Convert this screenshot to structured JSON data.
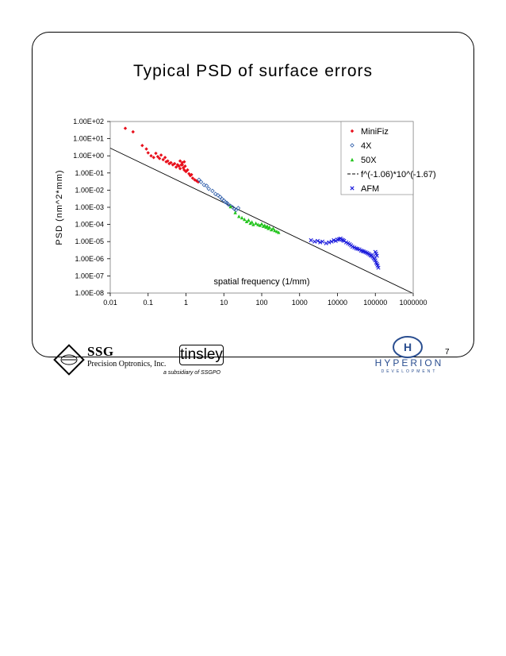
{
  "slide": {
    "title": "Typical PSD of surface errors",
    "page_number": "7"
  },
  "logos": {
    "ssg_name": "SSG",
    "ssg_sub": "Precision Optronics, Inc.",
    "tinsley_name": "tinsley",
    "tinsley_sub": "a subsidiary of SSGPO",
    "hyperion_name": "HYPERION",
    "hyperion_sub": "DEVELOPMENT"
  },
  "chart_data": {
    "type": "scatter",
    "title": "Typical PSD of surface errors",
    "xlabel": "spatial frequency (1/mm)",
    "ylabel": "PSD (nm^2*mm)",
    "x_scale": "log",
    "y_scale": "log",
    "xlim": [
      0.01,
      1000000
    ],
    "ylim": [
      1e-08,
      100
    ],
    "x_tick_labels": [
      "0.01",
      "0.1",
      "1",
      "10",
      "100",
      "1000",
      "10000",
      "100000",
      "1000000"
    ],
    "y_tick_labels": [
      "1.00E-08",
      "1.00E-07",
      "1.00E-06",
      "1.00E-05",
      "1.00E-04",
      "1.00E-03",
      "1.00E-02",
      "1.00E-01",
      "1.00E+00",
      "1.00E+01",
      "1.00E+02"
    ],
    "grid": false,
    "legend_position": "top-right",
    "colors": {
      "MiniFiz": "#e8101c",
      "4X": "#2a5aa8",
      "50X": "#22c41c",
      "fit": "#000000",
      "AFM": "#1a1adc"
    },
    "series": [
      {
        "name": "MiniFiz",
        "marker": "diamond",
        "color": "#e8101c",
        "points": [
          [
            0.025,
            40
          ],
          [
            0.04,
            25
          ],
          [
            0.07,
            4
          ],
          [
            0.09,
            2.5
          ],
          [
            0.1,
            1.5
          ],
          [
            0.12,
            1.0
          ],
          [
            0.14,
            0.8
          ],
          [
            0.16,
            1.4
          ],
          [
            0.18,
            0.9
          ],
          [
            0.2,
            0.7
          ],
          [
            0.22,
            1.1
          ],
          [
            0.25,
            0.6
          ],
          [
            0.28,
            0.8
          ],
          [
            0.3,
            0.45
          ],
          [
            0.33,
            0.5
          ],
          [
            0.36,
            0.35
          ],
          [
            0.4,
            0.4
          ],
          [
            0.45,
            0.3
          ],
          [
            0.5,
            0.35
          ],
          [
            0.55,
            0.22
          ],
          [
            0.6,
            0.3
          ],
          [
            0.65,
            0.25
          ],
          [
            0.7,
            0.18
          ],
          [
            0.75,
            0.3
          ],
          [
            0.8,
            0.4
          ],
          [
            0.85,
            0.2
          ],
          [
            0.9,
            0.15
          ],
          [
            0.95,
            0.25
          ],
          [
            1.0,
            0.12
          ],
          [
            1.1,
            0.15
          ],
          [
            1.2,
            0.09
          ],
          [
            1.3,
            0.07
          ],
          [
            1.4,
            0.08
          ],
          [
            1.5,
            0.05
          ],
          [
            1.7,
            0.04
          ],
          [
            1.9,
            0.035
          ],
          [
            2.1,
            0.03
          ],
          [
            0.7,
            0.5
          ],
          [
            0.8,
            0.3
          ],
          [
            0.9,
            0.45
          ]
        ]
      },
      {
        "name": "4X",
        "marker": "open-diamond",
        "color": "#2a5aa8",
        "points": [
          [
            2.2,
            0.04
          ],
          [
            2.5,
            0.03
          ],
          [
            3,
            0.02
          ],
          [
            3.5,
            0.018
          ],
          [
            4,
            0.012
          ],
          [
            5,
            0.009
          ],
          [
            6,
            0.006
          ],
          [
            7,
            0.005
          ],
          [
            8,
            0.004
          ],
          [
            9,
            0.003
          ],
          [
            10,
            0.0025
          ],
          [
            11,
            0.002
          ],
          [
            12,
            0.0018
          ],
          [
            13,
            0.0015
          ],
          [
            15,
            0.0012
          ],
          [
            17,
            0.001
          ],
          [
            19,
            0.0008
          ],
          [
            21,
            0.0007
          ],
          [
            24,
            0.0009
          ]
        ]
      },
      {
        "name": "50X",
        "marker": "triangle",
        "color": "#22c41c",
        "points": [
          [
            15,
            0.0011
          ],
          [
            20,
            0.0005
          ],
          [
            25,
            0.0003
          ],
          [
            30,
            0.00025
          ],
          [
            35,
            0.0002
          ],
          [
            40,
            0.00015
          ],
          [
            45,
            0.00018
          ],
          [
            50,
            0.00012
          ],
          [
            55,
            0.00014
          ],
          [
            60,
            0.0001
          ],
          [
            70,
            0.00012
          ],
          [
            80,
            0.0001
          ],
          [
            90,
            9e-05
          ],
          [
            100,
            0.00011
          ],
          [
            110,
            8e-05
          ],
          [
            120,
            9e-05
          ],
          [
            130,
            7e-05
          ],
          [
            140,
            8e-05
          ],
          [
            150,
            6e-05
          ],
          [
            160,
            7e-05
          ],
          [
            180,
            5e-05
          ],
          [
            200,
            6e-05
          ],
          [
            220,
            4.5e-05
          ],
          [
            250,
            4e-05
          ],
          [
            280,
            3.5e-05
          ]
        ]
      },
      {
        "name": "AFM",
        "marker": "x",
        "color": "#1a1adc",
        "points": [
          [
            2000,
            1.2e-05
          ],
          [
            2500,
            1e-05
          ],
          [
            3000,
            1.1e-05
          ],
          [
            3500,
            9e-06
          ],
          [
            4000,
            1e-05
          ],
          [
            5000,
            8e-06
          ],
          [
            6000,
            9e-06
          ],
          [
            7000,
            1e-05
          ],
          [
            8000,
            1.2e-05
          ],
          [
            9000,
            1.1e-05
          ],
          [
            10000,
            1.3e-05
          ],
          [
            11000,
            1.4e-05
          ],
          [
            12000,
            1.5e-05
          ],
          [
            13000,
            1.3e-05
          ],
          [
            14000,
            1.2e-05
          ],
          [
            15000,
            1.1e-05
          ],
          [
            17000,
            9e-06
          ],
          [
            19000,
            8e-06
          ],
          [
            21000,
            7e-06
          ],
          [
            23000,
            6e-06
          ],
          [
            25000,
            5e-06
          ],
          [
            28000,
            4.5e-06
          ],
          [
            31000,
            4e-06
          ],
          [
            34000,
            3.8e-06
          ],
          [
            38000,
            3.5e-06
          ],
          [
            42000,
            3e-06
          ],
          [
            46000,
            2.8e-06
          ],
          [
            50000,
            2.6e-06
          ],
          [
            55000,
            2.4e-06
          ],
          [
            60000,
            2.2e-06
          ],
          [
            65000,
            2e-06
          ],
          [
            70000,
            1.8e-06
          ],
          [
            75000,
            1.6e-06
          ],
          [
            80000,
            1.5e-06
          ],
          [
            85000,
            1.3e-06
          ],
          [
            90000,
            1.1e-06
          ],
          [
            95000,
            9.5e-07
          ],
          [
            100000,
            8e-07
          ],
          [
            105000,
            6e-07
          ],
          [
            110000,
            5e-07
          ],
          [
            115000,
            4e-07
          ],
          [
            120000,
            3e-07
          ],
          [
            100000,
            2.5e-06
          ],
          [
            105000,
            2e-06
          ],
          [
            110000,
            1.5e-06
          ]
        ]
      }
    ],
    "fit_line": {
      "name": "f^(-1.06)*10^(-1.67)",
      "style": "dashed",
      "color": "#000000",
      "exponent": -1.06,
      "log10_coefficient": -1.67
    }
  }
}
